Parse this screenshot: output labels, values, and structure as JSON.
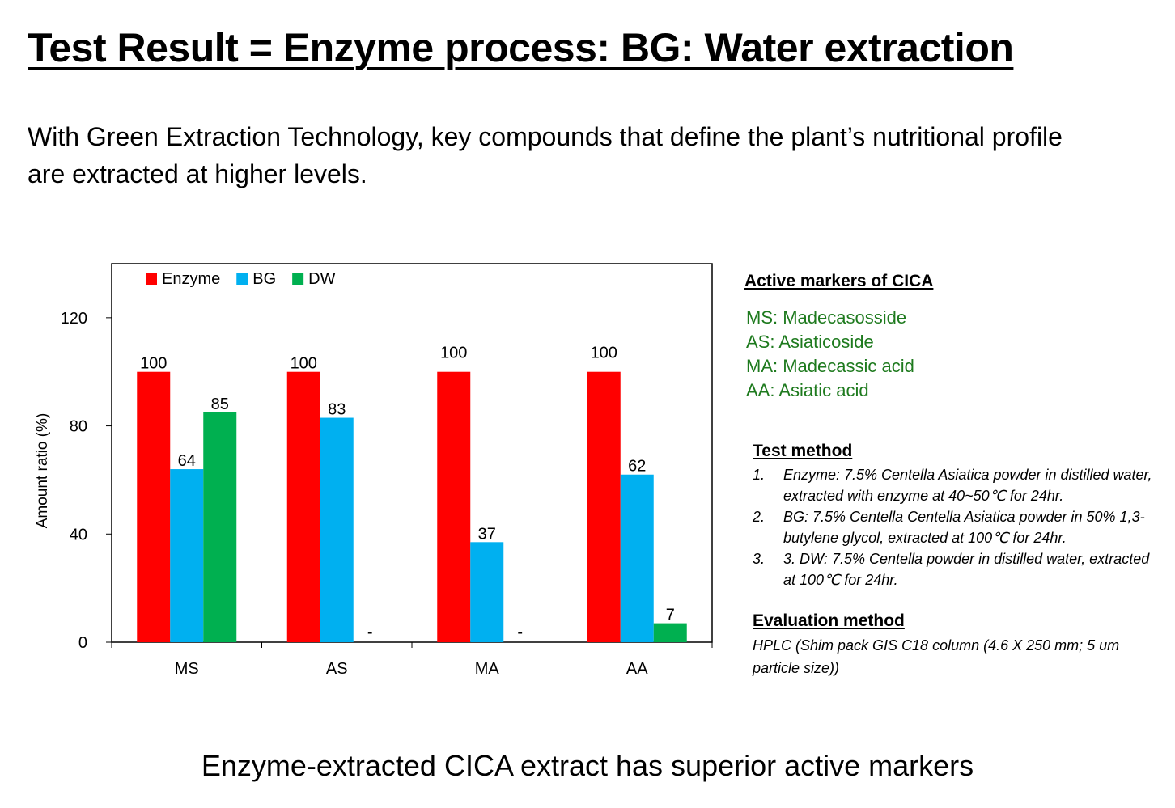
{
  "title": "Test Result = Enzyme process: BG: Water extraction",
  "subtitle": "With Green Extraction Technology, key compounds that define the plant’s nutritional profile are extracted at higher levels.",
  "chart_data": {
    "type": "bar",
    "categories": [
      "MS",
      "AS",
      "MA",
      "AA"
    ],
    "series": [
      {
        "name": "Enzyme",
        "color": "#ff0000",
        "values": [
          100,
          100,
          100,
          100
        ],
        "labels": [
          "100",
          "100",
          "100",
          "100"
        ]
      },
      {
        "name": "BG",
        "color": "#00b0f0",
        "values": [
          64,
          83,
          37,
          62
        ],
        "labels": [
          "64",
          "83",
          "37",
          "62"
        ]
      },
      {
        "name": "DW",
        "color": "#00b050",
        "values": [
          85,
          0,
          0,
          7
        ],
        "labels": [
          "85",
          "-",
          "-",
          "7"
        ]
      }
    ],
    "ylabel": "Amount  ratio  (%)",
    "ylim": [
      0,
      140
    ],
    "yticks": [
      0,
      40,
      80,
      120
    ],
    "legend": "top-left",
    "grid": false
  },
  "markers": {
    "heading": "Active markers of CICA",
    "items": [
      "MS: Madecasosside",
      "AS:  Asiaticoside",
      "MA: Madecassic acid",
      "AA: Asiatic acid"
    ]
  },
  "test_method": {
    "heading": "Test method",
    "items": [
      {
        "num": "1.",
        "text": "Enzyme: 7.5% Centella Asiatica powder in distilled water, extracted with enzyme at 40~50℃ for 24hr."
      },
      {
        "num": "2.",
        "text": "BG: 7.5% Centella Centella Asiatica powder in 50% 1,3-butylene glycol, extracted at 100℃ for 24hr."
      },
      {
        "num": "3.",
        "text": "3. DW: 7.5% Centella powder in distilled water, extracted at 100℃ for 24hr."
      }
    ]
  },
  "evaluation": {
    "heading": "Evaluation method",
    "text": "HPLC (Shim pack GIS C18 column (4.6 X 250 mm; 5 um particle size))"
  },
  "footer": "Enzyme-extracted CICA extract has superior active markers"
}
